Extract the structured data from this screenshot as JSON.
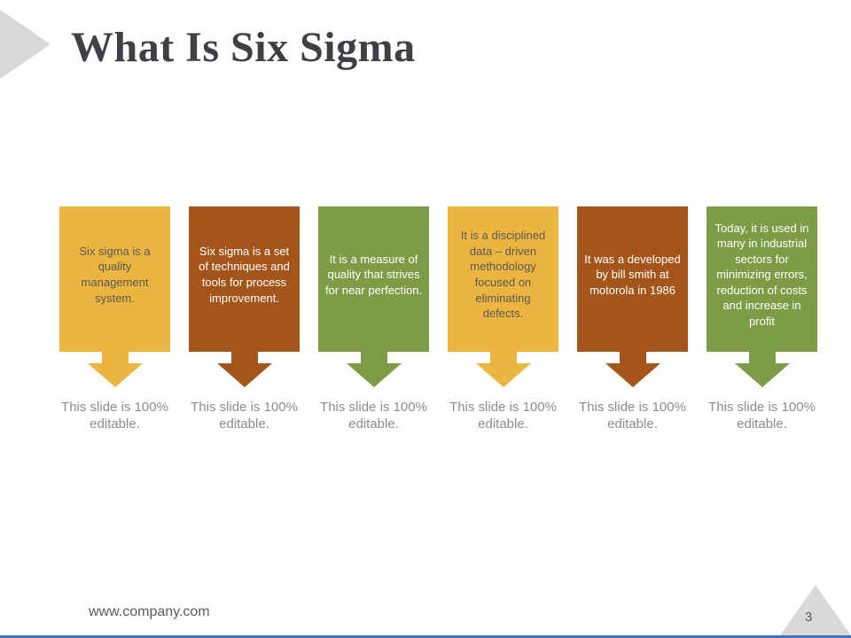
{
  "slide": {
    "title": "What Is Six Sigma",
    "caption": "This slide is 100% editable.",
    "footer_url": "www.company.com",
    "page_number": "3",
    "colors": {
      "gold": "#ebb540",
      "rust": "#a4551b",
      "green": "#7d9c45",
      "title_text": "#3f4045",
      "dark_card_text": "#595959",
      "light_card_text": "#ffffff",
      "muted_caption_text": "#8c8c8c",
      "corner_triangle_gray": "#d9d9d9",
      "bottom_accent_blue": "#4173c4"
    },
    "cards": [
      {
        "text": "Six sigma is a quality management system.",
        "color": "#ebb540",
        "text_color": "#595959"
      },
      {
        "text": "Six sigma is a set of techniques and tools for process improvement.",
        "color": "#a4551b",
        "text_color": "#ffffff"
      },
      {
        "text": "It is a measure of quality that strives for near perfection.",
        "color": "#7d9c45",
        "text_color": "#ffffff"
      },
      {
        "text": "It is a disciplined data – driven methodology focused on eliminating defects.",
        "color": "#ebb540",
        "text_color": "#595959"
      },
      {
        "text": "It was a developed by bill smith at motorola in 1986",
        "color": "#a4551b",
        "text_color": "#ffffff"
      },
      {
        "text": "Today, it is used in many in industrial sectors for minimizing errors, reduction of costs and increase in profit",
        "color": "#7d9c45",
        "text_color": "#ffffff"
      }
    ]
  }
}
